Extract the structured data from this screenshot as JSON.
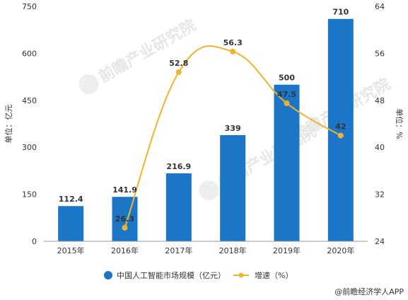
{
  "chart_data": {
    "type": "bar",
    "categories": [
      "2015年",
      "2016年",
      "2017年",
      "2018年",
      "2019年",
      "2020年"
    ],
    "series": [
      {
        "name": "中国人工智能市场规模（亿元）",
        "type": "bar",
        "axis": "left",
        "values": [
          112.4,
          141.9,
          216.9,
          339,
          500,
          710
        ],
        "labels": [
          "112.4",
          "141.9",
          "216.9",
          "339",
          "500",
          "710"
        ],
        "color": "#1b76c8"
      },
      {
        "name": "增速（%）",
        "type": "line",
        "axis": "right",
        "values": [
          null,
          26.3,
          52.8,
          56.3,
          47.5,
          42
        ],
        "labels": [
          "",
          "26.3",
          "52.8",
          "56.3",
          "47.5",
          "42"
        ],
        "color": "#f1b22e"
      }
    ],
    "ylabel": "单位：亿元",
    "y2label": "单位：%",
    "ylim": [
      0,
      750
    ],
    "y2lim": [
      24,
      64
    ],
    "yticks": [
      0,
      150,
      300,
      450,
      600,
      750
    ],
    "y2ticks": [
      24,
      32,
      40,
      48,
      56,
      64
    ],
    "legend": "bottom-center",
    "grid": false
  },
  "source": "@前瞻经济学人APP",
  "watermark": "前瞻产业研究院",
  "colors": {
    "bar": "#1b76c8",
    "line": "#f1b22e",
    "axis": "#999999"
  }
}
